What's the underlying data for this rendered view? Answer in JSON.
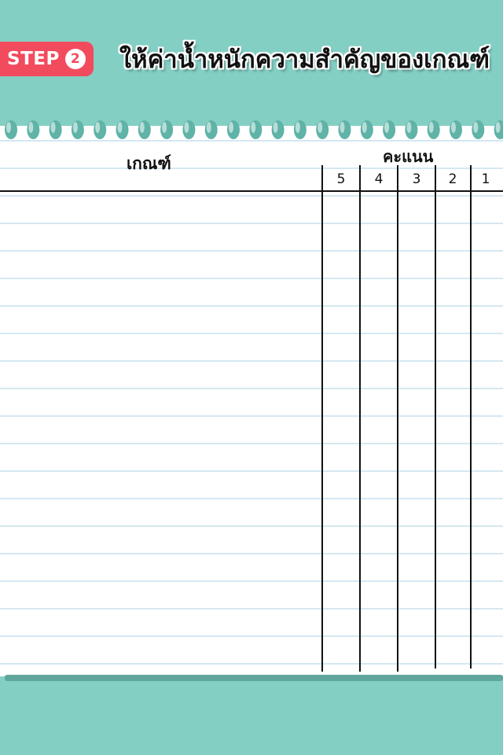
{
  "header": {
    "step_label": "STEP",
    "step_number": "2",
    "title": "ให้ค่าน้ำหนักความสำคัญของเกณฑ์"
  },
  "table": {
    "criteria_header": "เกณฑ์",
    "score_header": "คะแนน",
    "score_columns": [
      "5",
      "4",
      "3",
      "2",
      "1"
    ]
  },
  "colors": {
    "background": "#84cfc4",
    "badge": "#f24b5e",
    "hole": "#5fb3a7",
    "ruled_line": "#d4e8f2"
  }
}
